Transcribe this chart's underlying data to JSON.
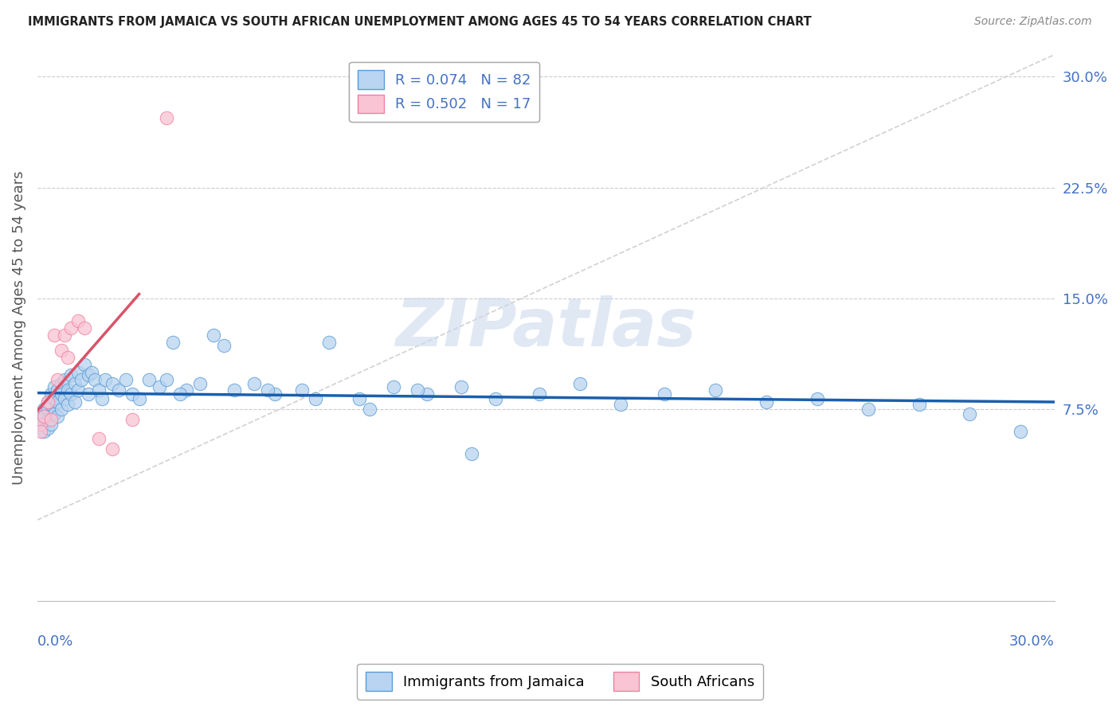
{
  "title": "IMMIGRANTS FROM JAMAICA VS SOUTH AFRICAN UNEMPLOYMENT AMONG AGES 45 TO 54 YEARS CORRELATION CHART",
  "source": "Source: ZipAtlas.com",
  "ylabel": "Unemployment Among Ages 45 to 54 years",
  "watermark": "ZIPatlas",
  "legend_r1": "R = 0.074   N = 82",
  "legend_r2": "R = 0.502   N = 17",
  "xlim": [
    0.0,
    0.3
  ],
  "ylim": [
    -0.055,
    0.315
  ],
  "yticks": [
    0.075,
    0.15,
    0.225,
    0.3
  ],
  "ytick_labels": [
    "7.5%",
    "15.0%",
    "22.5%",
    "30.0%"
  ],
  "blue_face": "#b8d4f0",
  "blue_edge": "#5b9bd5",
  "pink_face": "#f9c4d4",
  "pink_edge": "#f080a0",
  "blue_line": "#1a5fad",
  "pink_line": "#d9536a",
  "diag_color": "#cccccc",
  "grid_color": "#cccccc",
  "text_blue": "#4472c4",
  "text_dark": "#222222",
  "text_gray": "#888888",
  "watermark_color": "#ccd9ee",
  "blue_x": [
    0.001,
    0.001,
    0.001,
    0.002,
    0.002,
    0.002,
    0.002,
    0.003,
    0.003,
    0.003,
    0.003,
    0.004,
    0.004,
    0.004,
    0.005,
    0.005,
    0.005,
    0.006,
    0.006,
    0.006,
    0.007,
    0.007,
    0.007,
    0.008,
    0.008,
    0.009,
    0.009,
    0.01,
    0.01,
    0.011,
    0.011,
    0.012,
    0.012,
    0.013,
    0.014,
    0.015,
    0.015,
    0.016,
    0.017,
    0.018,
    0.019,
    0.02,
    0.022,
    0.024,
    0.026,
    0.028,
    0.03,
    0.033,
    0.036,
    0.04,
    0.044,
    0.048,
    0.052,
    0.058,
    0.064,
    0.07,
    0.078,
    0.086,
    0.095,
    0.105,
    0.115,
    0.125,
    0.135,
    0.148,
    0.16,
    0.172,
    0.185,
    0.2,
    0.215,
    0.23,
    0.245,
    0.26,
    0.275,
    0.29,
    0.038,
    0.042,
    0.055,
    0.068,
    0.082,
    0.098,
    0.112,
    0.128
  ],
  "blue_y": [
    0.068,
    0.072,
    0.065,
    0.075,
    0.07,
    0.065,
    0.06,
    0.08,
    0.075,
    0.068,
    0.062,
    0.085,
    0.078,
    0.065,
    0.09,
    0.082,
    0.072,
    0.088,
    0.08,
    0.07,
    0.092,
    0.085,
    0.075,
    0.095,
    0.082,
    0.088,
    0.078,
    0.098,
    0.085,
    0.092,
    0.08,
    0.1,
    0.088,
    0.095,
    0.105,
    0.098,
    0.085,
    0.1,
    0.095,
    0.088,
    0.082,
    0.095,
    0.092,
    0.088,
    0.095,
    0.085,
    0.082,
    0.095,
    0.09,
    0.12,
    0.088,
    0.092,
    0.125,
    0.088,
    0.092,
    0.085,
    0.088,
    0.12,
    0.082,
    0.09,
    0.085,
    0.09,
    0.082,
    0.085,
    0.092,
    0.078,
    0.085,
    0.088,
    0.08,
    0.082,
    0.075,
    0.078,
    0.072,
    0.06,
    0.095,
    0.085,
    0.118,
    0.088,
    0.082,
    0.075,
    0.088,
    0.045
  ],
  "pink_x": [
    0.001,
    0.001,
    0.002,
    0.003,
    0.004,
    0.005,
    0.006,
    0.007,
    0.008,
    0.009,
    0.01,
    0.012,
    0.014,
    0.018,
    0.022,
    0.028,
    0.038
  ],
  "pink_y": [
    0.065,
    0.06,
    0.07,
    0.08,
    0.068,
    0.125,
    0.095,
    0.115,
    0.125,
    0.11,
    0.13,
    0.135,
    0.13,
    0.055,
    0.048,
    0.068,
    0.272
  ]
}
